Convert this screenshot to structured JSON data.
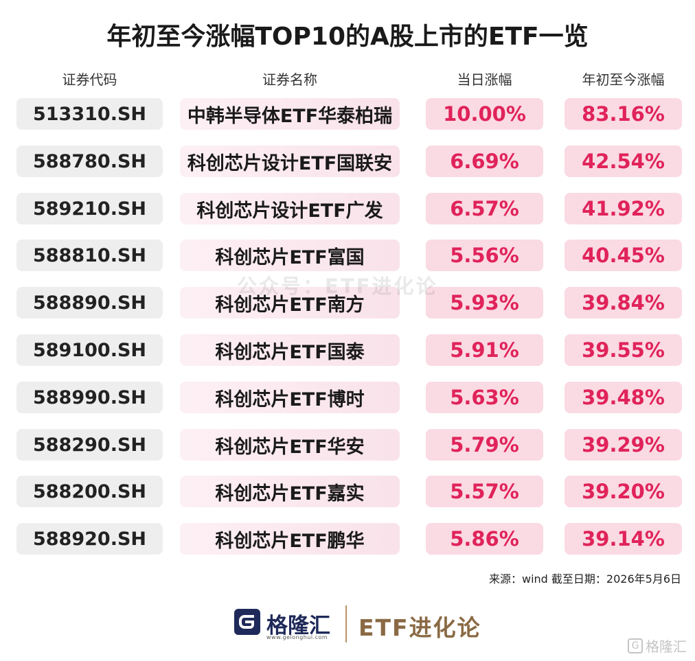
{
  "title": "年初至今涨幅TOP10的A股上市的ETF一览",
  "chart_data": {
    "type": "table",
    "columns": [
      "证券代码",
      "证券名称",
      "当日涨幅",
      "年初至今涨幅"
    ],
    "rows": [
      {
        "code": "513310.SH",
        "name": "中韩半导体ETF华泰柏瑞",
        "daily": "10.00%",
        "ytd": "83.16%"
      },
      {
        "code": "588780.SH",
        "name": "科创芯片设计ETF国联安",
        "daily": "6.69%",
        "ytd": "42.54%"
      },
      {
        "code": "589210.SH",
        "name": "科创芯片设计ETF广发",
        "daily": "6.57%",
        "ytd": "41.92%"
      },
      {
        "code": "588810.SH",
        "name": "科创芯片ETF富国",
        "daily": "5.56%",
        "ytd": "40.45%"
      },
      {
        "code": "588890.SH",
        "name": "科创芯片ETF南方",
        "daily": "5.93%",
        "ytd": "39.84%"
      },
      {
        "code": "589100.SH",
        "name": "科创芯片ETF国泰",
        "daily": "5.91%",
        "ytd": "39.55%"
      },
      {
        "code": "588990.SH",
        "name": "科创芯片ETF博时",
        "daily": "5.63%",
        "ytd": "39.48%"
      },
      {
        "code": "588290.SH",
        "name": "科创芯片ETF华安",
        "daily": "5.79%",
        "ytd": "39.29%"
      },
      {
        "code": "588200.SH",
        "name": "科创芯片ETF嘉实",
        "daily": "5.57%",
        "ytd": "39.20%"
      },
      {
        "code": "588920.SH",
        "name": "科创芯片ETF鹏华",
        "daily": "5.86%",
        "ytd": "39.14%"
      }
    ]
  },
  "watermark": "公众号：ETF进化论",
  "source": "来源：wind 截至日期：2026年5月6日",
  "footer": {
    "logo_letter": "G",
    "brand": "格隆汇",
    "url": "www.gelonghui.com",
    "column": "ETF进化论"
  },
  "corner_mark": {
    "letter": "G",
    "text": "格隆汇"
  },
  "colors": {
    "accent": "#e0235a",
    "value_bg": "#fadae3",
    "code_bg": "#eeeeee",
    "brand_navy": "#1f2a5a",
    "brand_gold": "#8a6a44"
  }
}
